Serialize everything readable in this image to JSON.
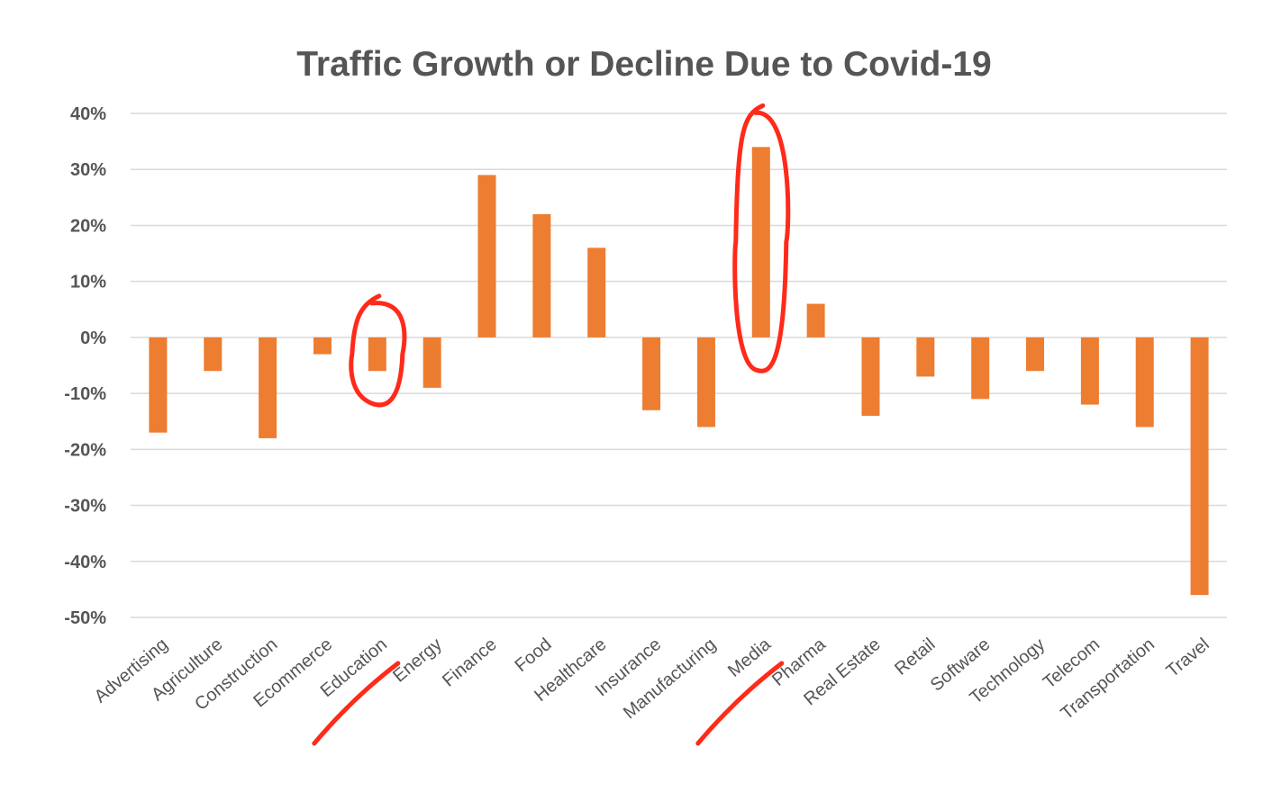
{
  "chart_data": {
    "type": "bar",
    "title": "Traffic Growth or Decline Due to Covid-19",
    "xlabel": "",
    "ylabel": "",
    "ylim": [
      -50,
      40
    ],
    "yticks": [
      40,
      30,
      20,
      10,
      0,
      -10,
      -20,
      -30,
      -40,
      -50
    ],
    "ytick_labels": [
      "40%",
      "30%",
      "20%",
      "10%",
      "0%",
      "-10%",
      "-20%",
      "-30%",
      "-40%",
      "-50%"
    ],
    "grid": true,
    "bar_color": "#ED7D31",
    "categories": [
      "Advertising",
      "Agriculture",
      "Construction",
      "Ecommerce",
      "Education",
      "Energy",
      "Finance",
      "Food",
      "Healthcare",
      "Insurance",
      "Manufacturing",
      "Media",
      "Pharma",
      "Real Estate",
      "Retail",
      "Software",
      "Technology",
      "Telecom",
      "Transportation",
      "Travel"
    ],
    "values": [
      -17,
      -6,
      -18,
      -3,
      -6,
      -9,
      29,
      22,
      16,
      -13,
      -16,
      34,
      6,
      -14,
      -7,
      -11,
      -6,
      -12,
      -16,
      -46
    ],
    "annotations": {
      "color": "#FF2A1A",
      "circled": [
        "Education",
        "Media"
      ],
      "underlined": [
        "Education",
        "Media"
      ]
    }
  }
}
